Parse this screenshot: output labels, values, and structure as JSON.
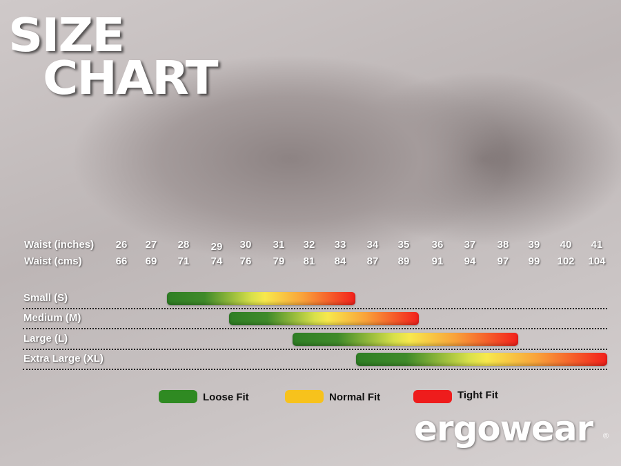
{
  "title_line1": "SIZE",
  "title_line2": "CHART",
  "logo_text": "ergowear",
  "logo_mark": "®",
  "chart_data": {
    "type": "range-bar",
    "row_labels": [
      "Waist (inches)",
      "Waist (cms)"
    ],
    "waist_inches": [
      26,
      27,
      28,
      29,
      30,
      31,
      32,
      33,
      34,
      35,
      36,
      37,
      38,
      39,
      40,
      41
    ],
    "waist_cms": [
      66,
      69,
      71,
      74,
      76,
      79,
      81,
      84,
      87,
      89,
      91,
      94,
      97,
      99,
      102,
      104
    ],
    "sizes": [
      {
        "label": "Small (S)",
        "from": 28,
        "to": 33
      },
      {
        "label": "Medium (M)",
        "from": 30,
        "to": 35
      },
      {
        "label": "Large (L)",
        "from": 32,
        "to": 38
      },
      {
        "label": "Extra Large (XL)",
        "from": 34,
        "to": 41
      }
    ],
    "legend": [
      {
        "label": "Loose Fit",
        "color": "#2f8a22"
      },
      {
        "label": "Normal Fit",
        "color": "#f7c21c"
      },
      {
        "label": "Tight Fit",
        "color": "#ee1c1c"
      }
    ]
  }
}
